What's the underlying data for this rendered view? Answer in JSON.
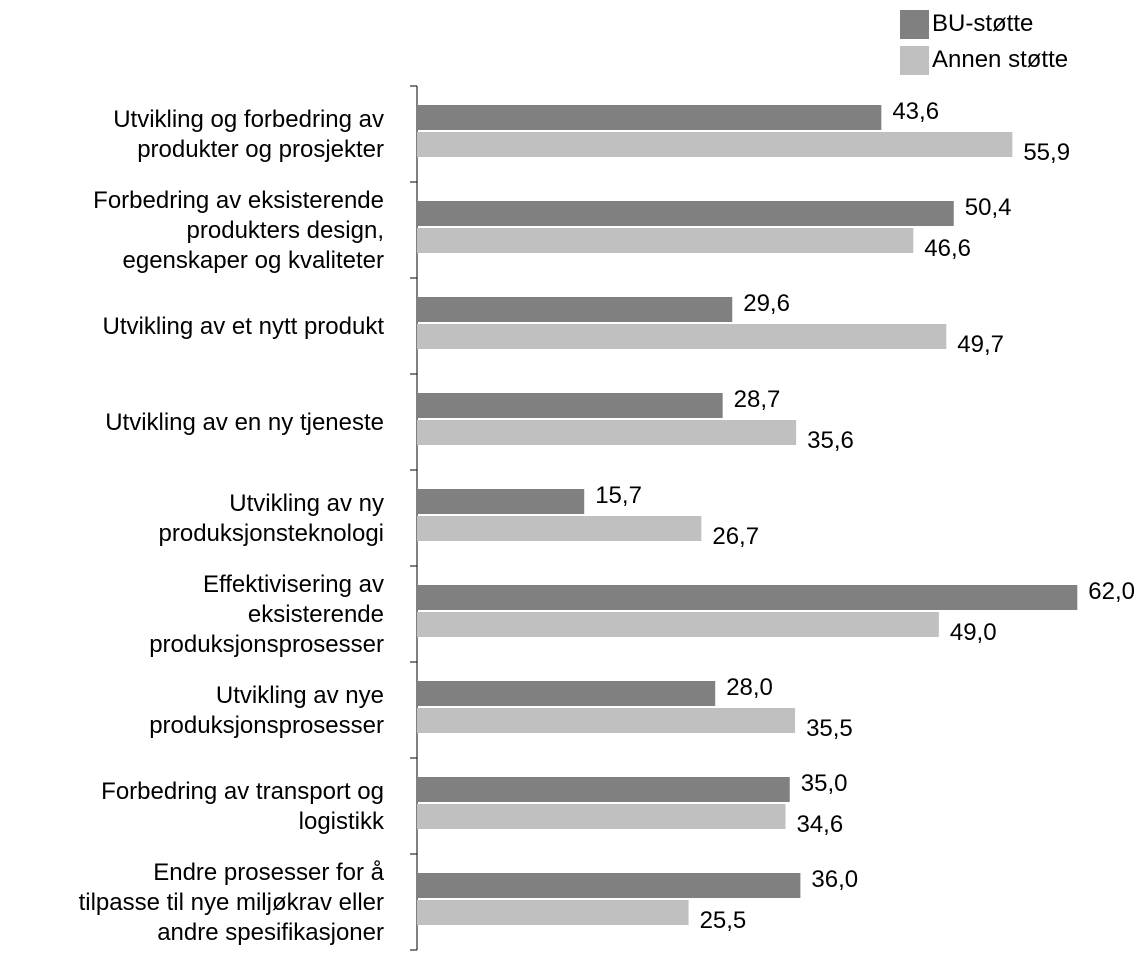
{
  "chart_data": {
    "type": "bar",
    "orientation": "horizontal",
    "categories": [
      [
        "Utvikling og forbedring av",
        "produkter og prosjekter"
      ],
      [
        "Forbedring av eksisterende",
        "produkters design,",
        "egenskaper og kvaliteter"
      ],
      [
        "Utvikling av et nytt produkt"
      ],
      [
        "Utvikling av en ny tjeneste"
      ],
      [
        "Utvikling av ny",
        "produksjonsteknologi"
      ],
      [
        "Effektivisering av",
        "eksisterende",
        "produksjonsprosesser"
      ],
      [
        "Utvikling av nye",
        "produksjonsprosesser"
      ],
      [
        "Forbedring av transport og",
        "logistikk"
      ],
      [
        "Endre prosesser for å",
        "tilpasse til nye miljøkrav eller",
        "andre spesifikasjoner"
      ]
    ],
    "series": [
      {
        "name": "BU-støtte",
        "color": "#808080",
        "values": [
          43.6,
          50.4,
          29.6,
          28.7,
          15.7,
          62.0,
          28.0,
          35.0,
          36.0
        ],
        "labels": [
          "43,6",
          "50,4",
          "29,6",
          "28,7",
          "15,7",
          "62,0",
          "28,0",
          "35,0",
          "36,0"
        ]
      },
      {
        "name": "Annen støtte",
        "color": "#c0c0c0",
        "values": [
          55.9,
          46.6,
          49.7,
          35.6,
          26.7,
          49.0,
          35.5,
          34.6,
          25.5
        ],
        "labels": [
          "55,9",
          "46,6",
          "49,7",
          "35,6",
          "26,7",
          "49,0",
          "35,5",
          "34,6",
          "25,5"
        ]
      }
    ],
    "xlim": [
      0,
      68
    ],
    "title": "",
    "xlabel": "",
    "ylabel": "",
    "grid": false,
    "legend_position": "top-right"
  }
}
